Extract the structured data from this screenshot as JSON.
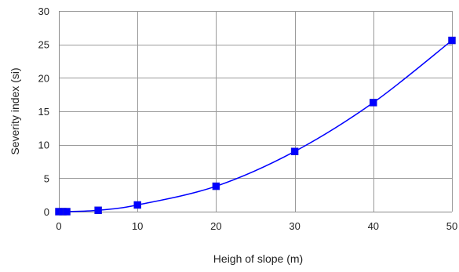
{
  "chart_data": {
    "type": "line",
    "title": "",
    "xlabel": "Heigh of slope (m)",
    "ylabel": "Severity index (si)",
    "xlim": [
      0,
      50
    ],
    "ylim": [
      0,
      30
    ],
    "xticks": [
      0,
      10,
      20,
      30,
      40,
      50
    ],
    "yticks": [
      0,
      5,
      10,
      15,
      20,
      25,
      30
    ],
    "grid": true,
    "legend": "none",
    "smooth": true,
    "marker": "square",
    "color": "#0000ff",
    "series": [
      {
        "x": [
          0,
          0.5,
          1,
          5,
          10,
          20,
          30,
          40,
          50
        ],
        "y": [
          0,
          0,
          0,
          0.2,
          1.0,
          3.8,
          9.0,
          16.3,
          25.6
        ]
      }
    ]
  }
}
